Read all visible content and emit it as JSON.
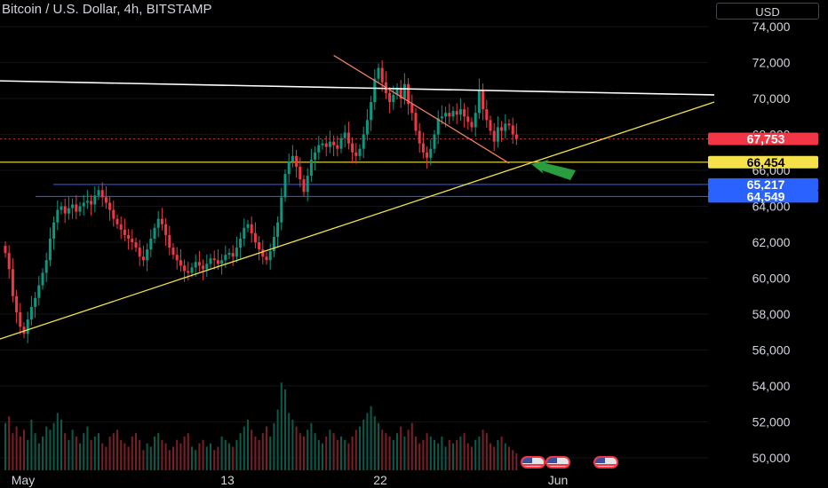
{
  "header": {
    "title": "Bitcoin / U.S. Dollar, 4h, BITSTAMP",
    "currency": "USD"
  },
  "colors": {
    "background": "#000000",
    "up": "#089981",
    "down": "#f23645",
    "trendline_top": "#ffffff",
    "trendline_support": "#f5e24a",
    "trendline_down": "#f08060",
    "level_yellow": "#f5e24a",
    "level_blue": "#2962ff",
    "arrow": "#2a9d3f"
  },
  "chart_data": {
    "type": "candlestick",
    "symbol": "Bitcoin / U.S. Dollar",
    "interval": "4h",
    "exchange": "BITSTAMP",
    "ylim": [
      49500,
      75000
    ],
    "y_ticks": [
      "74,000",
      "72,000",
      "70,000",
      "68,000",
      "66,000",
      "64,000",
      "62,000",
      "60,000",
      "58,000",
      "56,000",
      "54,000",
      "52,000",
      "50,000"
    ],
    "x_ticks": [
      "May",
      "13",
      "22",
      "Jun"
    ],
    "price_labels": [
      {
        "text": "67,753",
        "value": 67753,
        "kind": "last"
      },
      {
        "text": "66,454",
        "value": 66454,
        "kind": "yellow"
      },
      {
        "text": "65,217",
        "value": 65217,
        "kind": "blue"
      },
      {
        "text": "64,549",
        "value": 64549,
        "kind": "blue"
      }
    ],
    "horizontal_levels": [
      66454,
      65217,
      64549
    ],
    "candle_closes": [
      61400,
      60500,
      59000,
      58100,
      57300,
      56900,
      57700,
      58400,
      58900,
      59600,
      60300,
      61000,
      62200,
      63100,
      63800,
      64000,
      63600,
      63900,
      64100,
      63700,
      64000,
      64200,
      64300,
      64100,
      64600,
      64900,
      64500,
      64200,
      63800,
      63300,
      63000,
      62700,
      62400,
      62200,
      62000,
      61700,
      61200,
      61000,
      61600,
      62200,
      62800,
      63300,
      63000,
      62400,
      61700,
      61300,
      61000,
      60700,
      60400,
      60300,
      60600,
      60900,
      60700,
      60500,
      60800,
      61100,
      61000,
      60800,
      61000,
      61300,
      61400,
      61200,
      61700,
      62200,
      62800,
      63000,
      62500,
      62000,
      61600,
      61200,
      61000,
      61500,
      62300,
      63100,
      64500,
      65800,
      66500,
      66800,
      66200,
      65500,
      64800,
      65700,
      66600,
      67000,
      67400,
      67500,
      67300,
      67600,
      67400,
      67200,
      67800,
      68100,
      67500,
      67000,
      66800,
      67200,
      68000,
      68800,
      69800,
      71100,
      71700,
      70900,
      70300,
      69800,
      70200,
      70600,
      70000,
      70800,
      69700,
      69200,
      68200,
      67500,
      67000,
      66700,
      67200,
      68000,
      68900,
      69000,
      69200,
      69000,
      69300,
      69100,
      69400,
      69000,
      68700,
      68400,
      69200,
      70500,
      69400,
      68800,
      68200,
      67600,
      68400,
      68200,
      68600,
      68500,
      68000,
      67753
    ],
    "volume": [
      28,
      32,
      22,
      26,
      20,
      24,
      18,
      30,
      22,
      16,
      20,
      26,
      24,
      28,
      34,
      30,
      22,
      18,
      24,
      20,
      16,
      22,
      26,
      18,
      20,
      22,
      16,
      14,
      20,
      22,
      24,
      18,
      16,
      14,
      20,
      22,
      18,
      12,
      16,
      14,
      20,
      22,
      18,
      16,
      12,
      14,
      18,
      16,
      20,
      22,
      14,
      12,
      16,
      18,
      14,
      16,
      12,
      14,
      20,
      18,
      16,
      14,
      18,
      22,
      26,
      30,
      24,
      20,
      18,
      22,
      26,
      20,
      28,
      36,
      52,
      48,
      34,
      30,
      26,
      22,
      20,
      24,
      28,
      22,
      18,
      16,
      20,
      24,
      22,
      18,
      20,
      18,
      16,
      20,
      24,
      26,
      30,
      34,
      38,
      32,
      28,
      24,
      22,
      20,
      18,
      22,
      26,
      20,
      24,
      28,
      20,
      16,
      18,
      22,
      20,
      18,
      16,
      20,
      14,
      18,
      16,
      18,
      20,
      22,
      16,
      14,
      18,
      20,
      24,
      22,
      16,
      14,
      18,
      20,
      16,
      14,
      12,
      10
    ],
    "trendlines": [
      {
        "name": "resistance",
        "from": {
          "bar": -6,
          "price": 71000
        },
        "to": {
          "bar": 190,
          "price": 70200
        }
      },
      {
        "name": "support",
        "from": {
          "bar": -6,
          "price": 56300
        },
        "to": {
          "bar": 190,
          "price": 69800
        }
      },
      {
        "name": "downtrend",
        "from": {
          "bar": 88,
          "price": 72400
        },
        "to": {
          "bar": 135,
          "price": 66400
        }
      }
    ]
  }
}
